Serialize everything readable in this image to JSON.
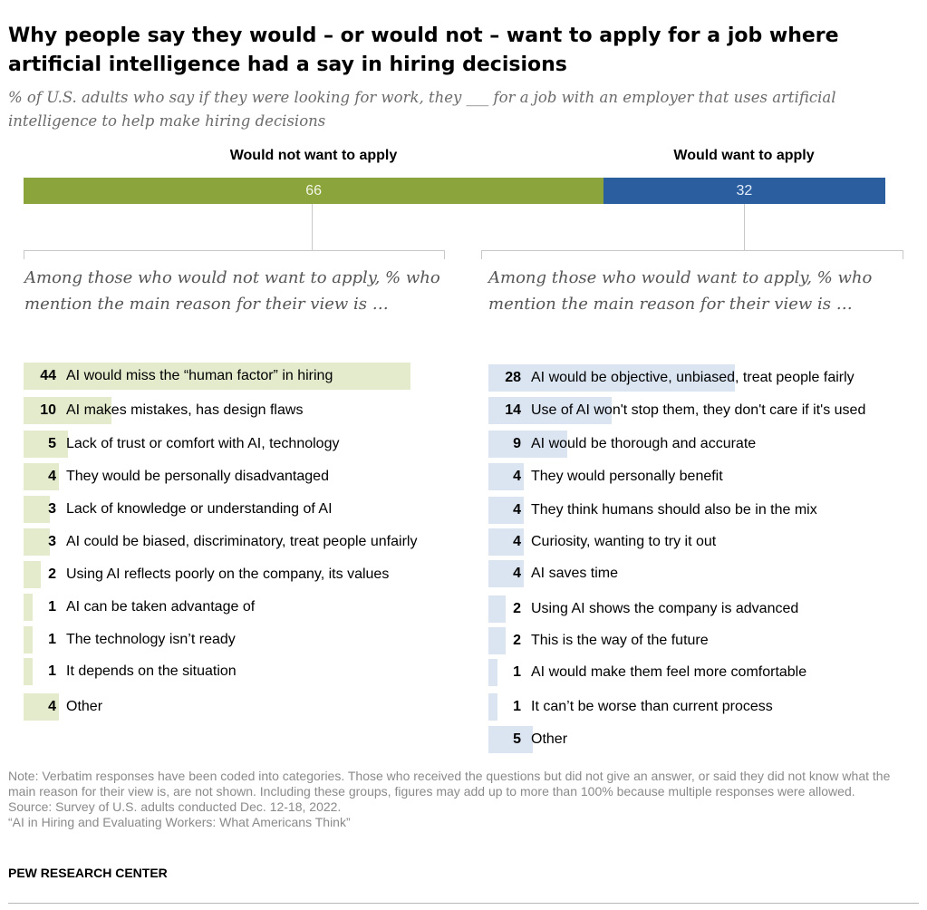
{
  "title": "Why people say they would – or would not – want to apply for a job where artificial intelligence had a say in hiring decisions",
  "subtitle": "% of U.S. adults who say if they were looking for work, they ___ for a job with an employer that uses artificial intelligence to help make hiring decisions",
  "colors": {
    "not_apply": "#8ba43b",
    "apply": "#2a5e9f",
    "left_bar": "#e4ebcc",
    "right_bar": "#dbe5f1"
  },
  "chart_data": [
    {
      "type": "bar",
      "orientation": "horizontal-stacked",
      "categories": [
        "Would not want to apply",
        "Would want to apply"
      ],
      "values": [
        66,
        32
      ]
    },
    {
      "type": "bar",
      "orientation": "horizontal",
      "header": "Among those who would not want to apply, % who mention the main reason for their view is …",
      "categories": [
        "AI would miss the “human factor” in hiring",
        "AI makes mistakes, has design flaws",
        "Lack of trust or comfort with AI, technology",
        "They would be personally disadvantaged",
        "Lack of knowledge or understanding of AI",
        "AI could be biased, discriminatory, treat people unfairly",
        "Using AI reflects poorly on the company, its values",
        "AI can be taken advantage of",
        "The technology isn’t ready",
        "It depends on the situation",
        "Other"
      ],
      "values": [
        44,
        10,
        5,
        4,
        3,
        3,
        2,
        1,
        1,
        1,
        4
      ]
    },
    {
      "type": "bar",
      "orientation": "horizontal",
      "header": "Among those who would want to apply, % who mention the main reason for their view is …",
      "categories": [
        "AI would be objective, unbiased, treat people fairly",
        "Use of AI won't stop them, they don't care if it's used",
        "AI would be thorough and accurate",
        "They would personally benefit",
        "They think humans should also be in the mix",
        "Curiosity, wanting to try it out",
        "AI saves time",
        "Using AI shows the company is advanced",
        "This is the way of the future",
        "AI would make them feel more comfortable",
        "It can’t be worse than current process",
        "Other"
      ],
      "values": [
        28,
        14,
        9,
        4,
        4,
        4,
        4,
        2,
        2,
        1,
        1,
        5
      ]
    }
  ],
  "note": "Note: Verbatim responses have been coded into categories. Those who received the questions but did not give an answer, or said they did not know what the main reason for their view is, are not shown. Including these groups, figures may add up to more than 100% because multiple responses were allowed.",
  "source": "Source: Survey of U.S. adults conducted Dec. 12-18, 2022.",
  "report": "“AI in Hiring and Evaluating Workers: What Americans Think”",
  "logo": "PEW RESEARCH CENTER"
}
